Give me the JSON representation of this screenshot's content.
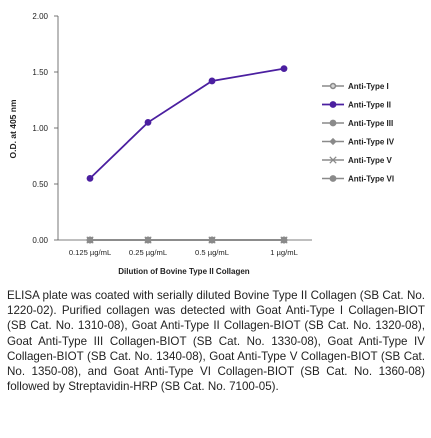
{
  "chart_data": {
    "type": "line",
    "xlabel": "Dilution of Bovine Type II Collagen",
    "ylabel": "O.D. at 405 nm",
    "categories": [
      "0.125 µg/mL",
      "0.25 µg/mL",
      "0.5 µg/mL",
      "1 µg/mL"
    ],
    "ylim": [
      0,
      2.0
    ],
    "yticks": [
      "0.00",
      "0.50",
      "1.00",
      "1.50",
      "2.00"
    ],
    "grid": false,
    "legend_position": "right",
    "series": [
      {
        "name": "Anti-Type I",
        "values": [
          0.0,
          0.0,
          0.0,
          0.0
        ],
        "color": "#8a8a8a",
        "marker": "circle-plus"
      },
      {
        "name": "Anti-Type II",
        "values": [
          0.55,
          1.05,
          1.42,
          1.53
        ],
        "color": "#4b1fa0",
        "marker": "circle"
      },
      {
        "name": "Anti-Type III",
        "values": [
          0.0,
          0.0,
          0.0,
          0.0
        ],
        "color": "#8a8a8a",
        "marker": "circle"
      },
      {
        "name": "Anti-Type IV",
        "values": [
          0.0,
          0.0,
          0.0,
          0.0
        ],
        "color": "#8a8a8a",
        "marker": "diamond"
      },
      {
        "name": "Anti-Type V",
        "values": [
          0.0,
          0.0,
          0.0,
          0.0
        ],
        "color": "#8a8a8a",
        "marker": "x"
      },
      {
        "name": "Anti-Type VI",
        "values": [
          0.0,
          0.0,
          0.0,
          0.0
        ],
        "color": "#8a8a8a",
        "marker": "circle"
      }
    ]
  },
  "caption": "ELISA plate was coated with serially diluted Bovine Type II Collagen (SB Cat. No. 1220-02).  Purified collagen was detected with Goat Anti-Type I Collagen-BIOT (SB Cat. No. 1310-08), Goat Anti-Type II Collagen-BIOT (SB Cat. No. 1320-08), Goat Anti-Type III Collagen-BIOT (SB Cat. No. 1330-08), Goat Anti-Type IV Collagen-BIOT (SB Cat. No. 1340-08), Goat Anti-Type V Collagen-BIOT (SB Cat. No. 1350-08), and Goat Anti-Type VI Collagen-BIOT (SB Cat. No. 1360-08) followed by Streptavidin-HRP (SB Cat. No. 7100-05)."
}
